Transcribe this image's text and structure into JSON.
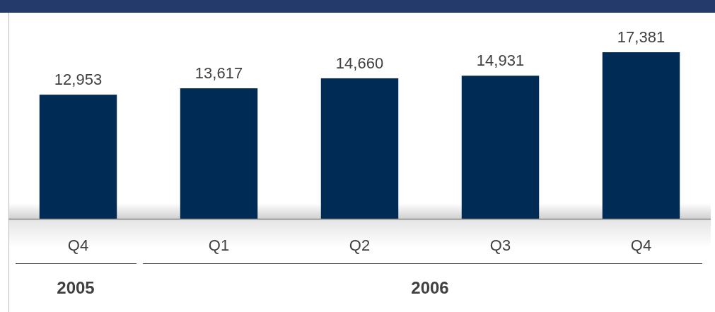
{
  "chart_data": {
    "type": "bar",
    "categories": [
      "Q4",
      "Q1",
      "Q2",
      "Q3",
      "Q4"
    ],
    "values": [
      12953,
      13617,
      14660,
      14931,
      17381
    ],
    "color": "#002b55",
    "value_labels": [
      "12,953",
      "13,617",
      "14,660",
      "14,931",
      "17,381"
    ],
    "annotations": [
      "2005",
      "2006"
    ]
  }
}
